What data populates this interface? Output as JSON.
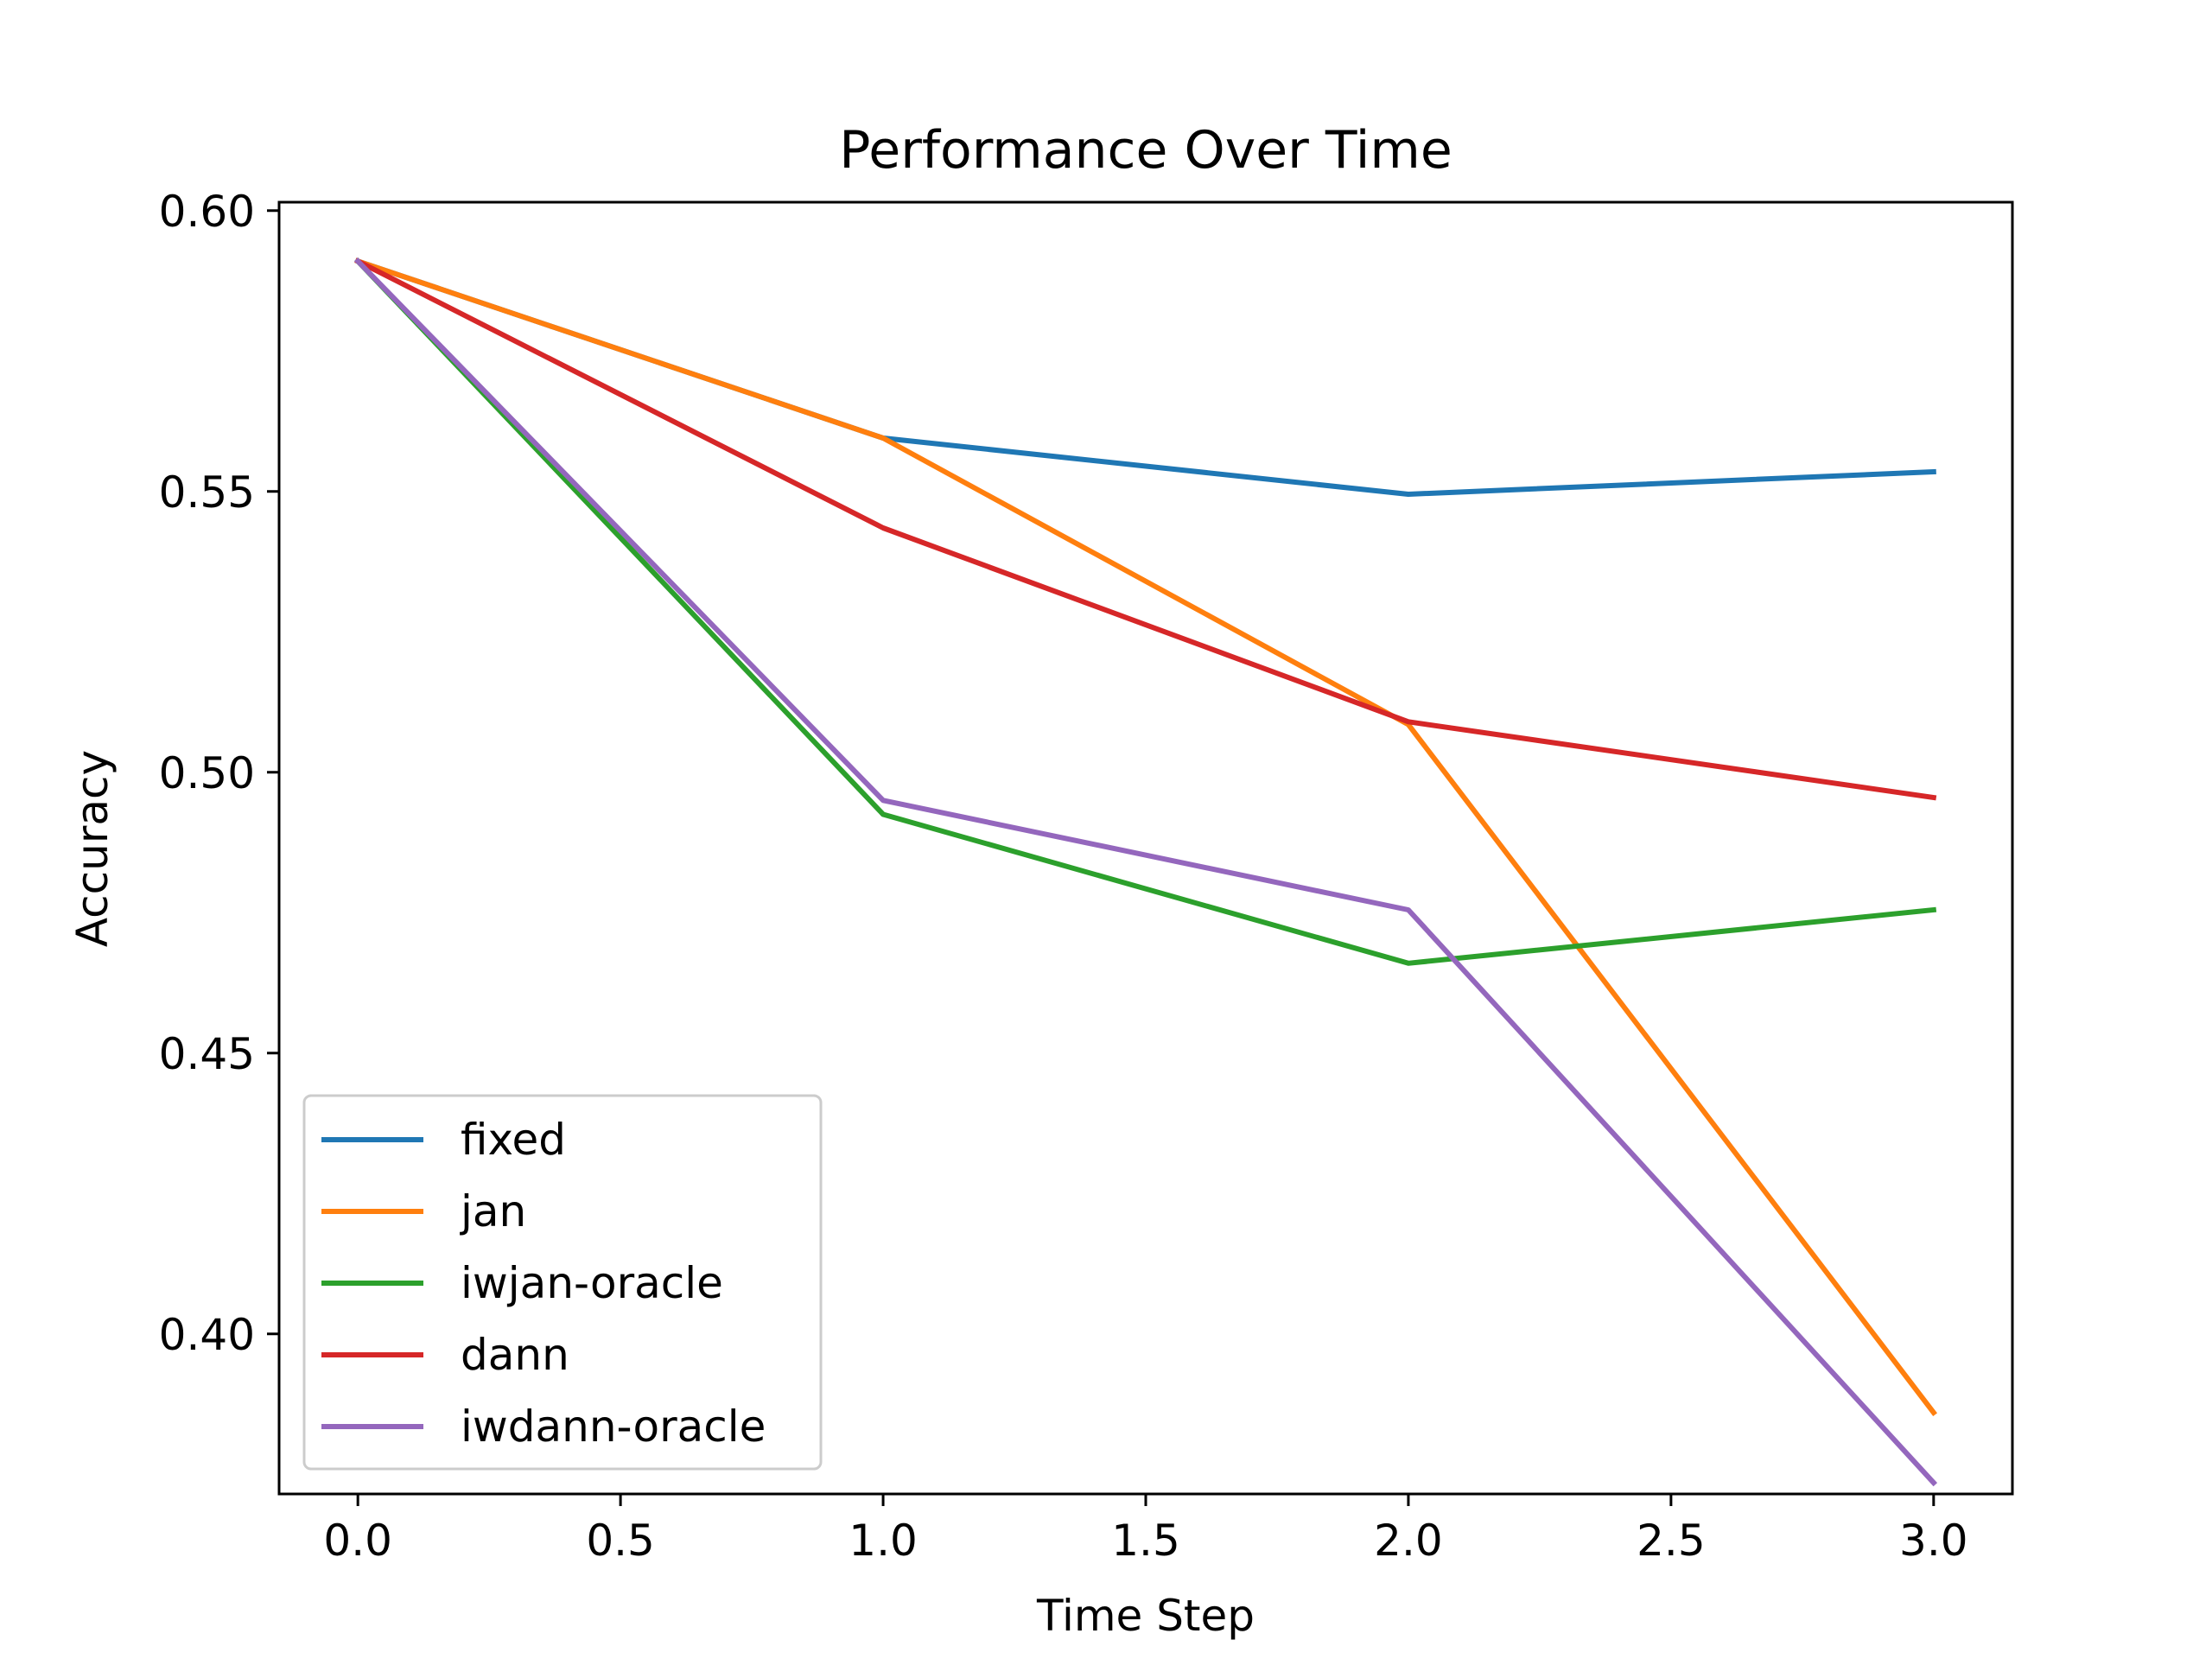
{
  "chart_data": {
    "type": "line",
    "title": "Performance Over Time",
    "xlabel": "Time Step",
    "ylabel": "Accuracy",
    "x": [
      0.0,
      1.0,
      2.0,
      3.0
    ],
    "xlim": [
      -0.15,
      3.15
    ],
    "ylim": [
      0.3715,
      0.6015
    ],
    "xticks": [
      0.0,
      0.5,
      1.0,
      1.5,
      2.0,
      2.5,
      3.0
    ],
    "xtick_labels": [
      "0.0",
      "0.5",
      "1.0",
      "1.5",
      "2.0",
      "2.5",
      "3.0"
    ],
    "yticks": [
      0.4,
      0.45,
      0.5,
      0.55,
      0.6
    ],
    "ytick_labels": [
      "0.40",
      "0.45",
      "0.50",
      "0.55",
      "0.60"
    ],
    "grid": false,
    "legend_position": "lower-left",
    "series": [
      {
        "name": "fixed",
        "color": "#1f77b4",
        "values": [
          0.591,
          0.5595,
          0.5495,
          0.5535
        ]
      },
      {
        "name": "jan",
        "color": "#ff7f0e",
        "values": [
          0.591,
          0.5595,
          0.5085,
          0.386
        ]
      },
      {
        "name": "iwjan-oracle",
        "color": "#2ca02c",
        "values": [
          0.591,
          0.4925,
          0.466,
          0.4755
        ]
      },
      {
        "name": "dann",
        "color": "#d62728",
        "values": [
          0.591,
          0.5435,
          0.509,
          0.4955
        ]
      },
      {
        "name": "iwdann-oracle",
        "color": "#9467bd",
        "values": [
          0.591,
          0.495,
          0.4755,
          0.3735
        ]
      }
    ]
  }
}
